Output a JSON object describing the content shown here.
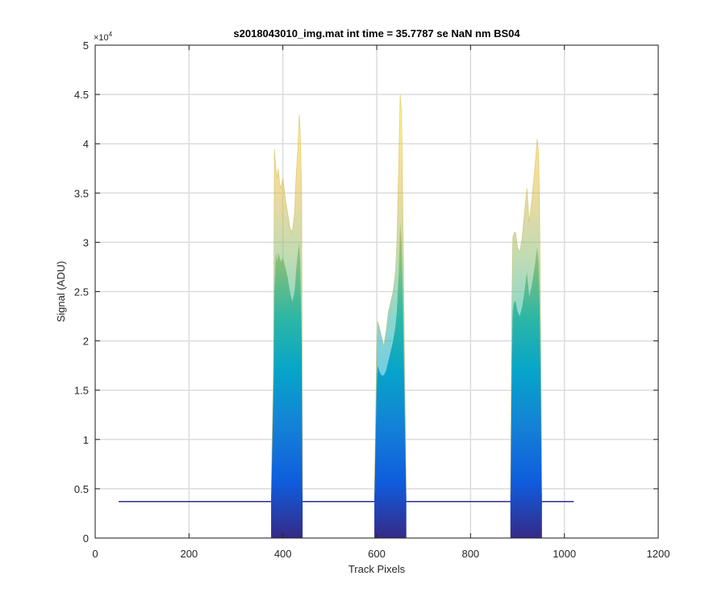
{
  "chart_data": {
    "type": "area",
    "title": "s2018043010_img.mat int time = 35.7787 se  NaN nm BS04",
    "xlabel": "Track Pixels",
    "ylabel": "Signal (ADU)",
    "xlim": [
      0,
      1200
    ],
    "ylim": [
      0,
      50000
    ],
    "y_exponent_label": "×10",
    "y_exponent_power": "4",
    "x_ticks": [
      0,
      200,
      400,
      600,
      800,
      1000,
      1200
    ],
    "x_tick_labels": [
      "0",
      "200",
      "400",
      "600",
      "800",
      "1000",
      "1200"
    ],
    "y_ticks": [
      0,
      5000,
      10000,
      15000,
      20000,
      25000,
      30000,
      35000,
      40000,
      45000,
      50000
    ],
    "y_tick_labels": [
      "0",
      "0.5",
      "1",
      "1.5",
      "2",
      "2.5",
      "3",
      "3.5",
      "4",
      "4.5",
      "5"
    ],
    "grid": true,
    "colormap": "parula",
    "colormap_stops": [
      "#352a87",
      "#0f5cdd",
      "#1481d6",
      "#06a4ca",
      "#2eb7a4",
      "#87bf77",
      "#d1bb59",
      "#fec832",
      "#f9fb0e"
    ],
    "baseline": {
      "x_start": 50,
      "x_end": 1020,
      "value": 3700
    },
    "series": [
      {
        "x": [
          375,
          380,
          382,
          385,
          388,
          390,
          393,
          396,
          400,
          405,
          410,
          415,
          420,
          425,
          428,
          432,
          435,
          437,
          440,
          442
        ],
        "y_max": [
          4500,
          17500,
          39500,
          37500,
          36500,
          37500,
          36000,
          35500,
          36500,
          34500,
          33000,
          31500,
          31000,
          33000,
          36500,
          39500,
          43000,
          41000,
          35000,
          4500
        ],
        "y_core": [
          4200,
          15000,
          25000,
          29000,
          28000,
          29000,
          28500,
          28000,
          28500,
          27500,
          26500,
          25000,
          24000,
          25000,
          27000,
          29000,
          30000,
          28000,
          20000,
          4200
        ]
      },
      {
        "x": [
          595,
          600,
          602,
          605,
          610,
          615,
          620,
          625,
          630,
          635,
          640,
          643,
          647,
          650,
          653,
          655,
          657,
          660,
          663
        ],
        "y_max": [
          4500,
          19000,
          22000,
          21500,
          20500,
          19500,
          21000,
          23000,
          24000,
          25000,
          27000,
          30000,
          38000,
          45000,
          43000,
          36000,
          28000,
          15000,
          4500
        ],
        "y_core": [
          4200,
          15000,
          17500,
          17000,
          16500,
          16500,
          17000,
          18000,
          19000,
          20000,
          21500,
          23000,
          27000,
          32000,
          30000,
          26000,
          20000,
          12000,
          4200
        ]
      },
      {
        "x": [
          885,
          888,
          890,
          893,
          896,
          900,
          905,
          910,
          915,
          920,
          925,
          930,
          935,
          938,
          942,
          945,
          947,
          950,
          952
        ],
        "y_max": [
          4500,
          24000,
          30500,
          31000,
          31000,
          29500,
          29000,
          30500,
          33000,
          35500,
          32000,
          34000,
          36500,
          38000,
          40500,
          39000,
          34000,
          18000,
          4500
        ],
        "y_core": [
          4200,
          18000,
          23000,
          24000,
          24000,
          23000,
          22500,
          23500,
          25000,
          27000,
          24500,
          25500,
          27000,
          28000,
          29500,
          28000,
          24000,
          13000,
          4200
        ]
      }
    ]
  }
}
